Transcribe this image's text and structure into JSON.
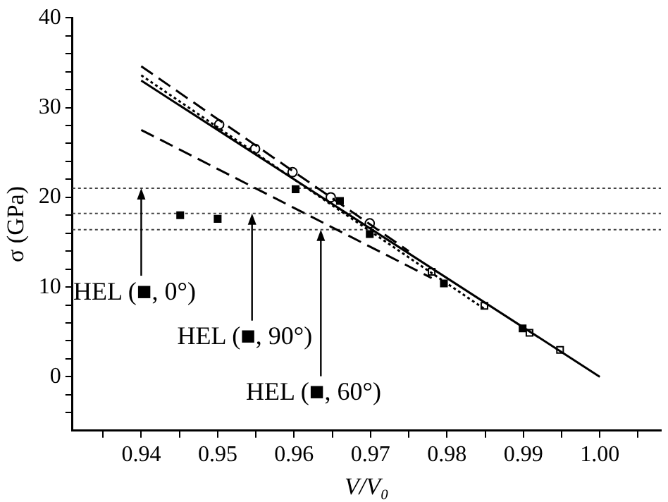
{
  "chart_data": {
    "type": "line",
    "xlabel": "V/V₀",
    "ylabel": "σ (GPa)",
    "xlim": [
      0.931,
      1.008
    ],
    "ylim": [
      -6,
      40
    ],
    "xticks": [
      {
        "value": 0.935,
        "label": null
      },
      0.94,
      {
        "value": 0.945,
        "label": null
      },
      0.95,
      {
        "value": 0.955,
        "label": null
      },
      0.96,
      {
        "value": 0.965,
        "label": null
      },
      0.97,
      {
        "value": 0.975,
        "label": null
      },
      0.98,
      {
        "value": 0.985,
        "label": null
      },
      0.99,
      {
        "value": 0.995,
        "label": null
      },
      {
        "value": 1.0,
        "label": "1.00"
      },
      {
        "value": 1.005,
        "label": null
      }
    ],
    "yticks": [
      {
        "value": -4,
        "label": null
      },
      {
        "value": -2,
        "label": null
      },
      0,
      {
        "value": 2,
        "label": null
      },
      {
        "value": 4,
        "label": null
      },
      {
        "value": 6,
        "label": null
      },
      {
        "value": 8,
        "label": null
      },
      10,
      {
        "value": 12,
        "label": null
      },
      {
        "value": 14,
        "label": null
      },
      {
        "value": 16,
        "label": null
      },
      {
        "value": 18,
        "label": null
      },
      20,
      {
        "value": 22,
        "label": null
      },
      {
        "value": 24,
        "label": null
      },
      {
        "value": 26,
        "label": null
      },
      {
        "value": 28,
        "label": null
      },
      30,
      {
        "value": 32,
        "label": null
      },
      {
        "value": 34,
        "label": null
      },
      {
        "value": 36,
        "label": null
      },
      {
        "value": 38,
        "label": null
      },
      40
    ],
    "grid": false,
    "legend": false,
    "series": [
      {
        "type": "line",
        "color": "#000000",
        "line_style": "solid",
        "marker": "none",
        "x": [
          0.94,
          1.0
        ],
        "values": [
          33,
          0
        ]
      },
      {
        "type": "line",
        "color": "#000000",
        "line_style": "dashed",
        "marker": "none",
        "x": [
          0.94,
          0.975
        ],
        "values": [
          34.6,
          14.0
        ]
      },
      {
        "type": "line",
        "color": "#000000",
        "line_style": "dotted",
        "marker": "none",
        "x": [
          0.94,
          0.985
        ],
        "values": [
          33.6,
          7.5
        ]
      },
      {
        "type": "line",
        "color": "#000000",
        "line_style": "dashed",
        "marker": "none",
        "x": [
          0.94,
          0.978
        ],
        "values": [
          27.5,
          11.0
        ]
      },
      {
        "type": "scatter",
        "color": "#ffffff",
        "marker": "circle",
        "x": [
          0.9502,
          0.9549,
          0.9598,
          0.9648,
          0.9699
        ],
        "values": [
          28.1,
          25.4,
          22.8,
          20.0,
          17.1
        ]
      },
      {
        "type": "scatter",
        "color": "#ffffff",
        "marker": "square",
        "x": [
          0.978,
          0.9849,
          0.9908,
          0.9948
        ],
        "values": [
          11.7,
          7.9,
          4.9,
          3.0
        ]
      },
      {
        "type": "scatter",
        "color": "#000000",
        "marker": "square",
        "x": [
          0.9451,
          0.95,
          0.9602,
          0.966,
          0.9699,
          0.9796,
          0.9899
        ],
        "values": [
          18.0,
          17.6,
          20.9,
          19.6,
          15.9,
          10.4,
          5.4
        ]
      }
    ],
    "ref_lines": [
      {
        "axis": "y",
        "value": 21.0,
        "line_style": "dotted",
        "color": "#444444"
      },
      {
        "axis": "y",
        "value": 18.2,
        "line_style": "dotted",
        "color": "#444444"
      },
      {
        "axis": "y",
        "value": 16.4,
        "line_style": "dotted",
        "color": "#444444"
      }
    ],
    "annotations": [
      {
        "text": "HEL (■, 0°)",
        "x": 0.94,
        "y": 21.0
      },
      {
        "text": "HEL (■, 90°)",
        "x": 0.9545,
        "y": 18.2
      },
      {
        "text": "HEL (■, 60°)",
        "x": 0.9635,
        "y": 16.4
      }
    ]
  }
}
